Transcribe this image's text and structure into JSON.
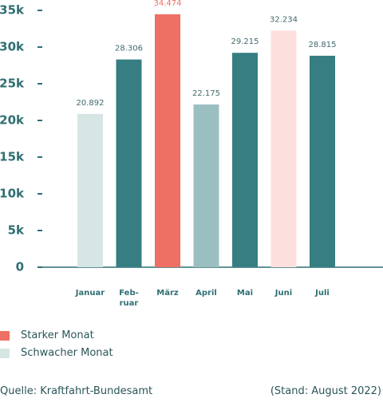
{
  "chart_data": {
    "type": "bar",
    "categories": [
      "Januar",
      "Feb-\nruar",
      "März",
      "April",
      "Mai",
      "Juni",
      "Juli"
    ],
    "values": [
      20892,
      28306,
      34474,
      22175,
      29215,
      32234,
      28815
    ],
    "value_labels": [
      "20.892",
      "28.306",
      "34.474",
      "22.175",
      "29.215",
      "32.234",
      "28.815"
    ],
    "colors": [
      "#d5e6e5",
      "#367e82",
      "#ee7064",
      "#9bbfc1",
      "#367e82",
      "#fde0de",
      "#367e82"
    ],
    "value_label_colors": [
      "#3f6a6d",
      "#3f6a6d",
      "#ee7064",
      "#3f6a6d",
      "#3f6a6d",
      "#3f6a6d",
      "#3f6a6d"
    ],
    "ylim": [
      0,
      35000
    ],
    "yticks": [
      {
        "value": 0,
        "label": "0"
      },
      {
        "value": 5000,
        "label": "5k"
      },
      {
        "value": 10000,
        "label": "10k"
      },
      {
        "value": 15000,
        "label": "15k"
      },
      {
        "value": 20000,
        "label": "20k"
      },
      {
        "value": 25000,
        "label": "25k"
      },
      {
        "value": 30000,
        "label": "30k"
      },
      {
        "value": 35000,
        "label": "35k"
      }
    ],
    "legend": [
      {
        "label": "Starker Monat",
        "color": "#ee7064"
      },
      {
        "label": "Schwacher Monat",
        "color": "#d5e6e5"
      }
    ],
    "source": "Quelle: Kraftfahrt-Bundesamt",
    "note": "(Stand: August 2022)"
  }
}
